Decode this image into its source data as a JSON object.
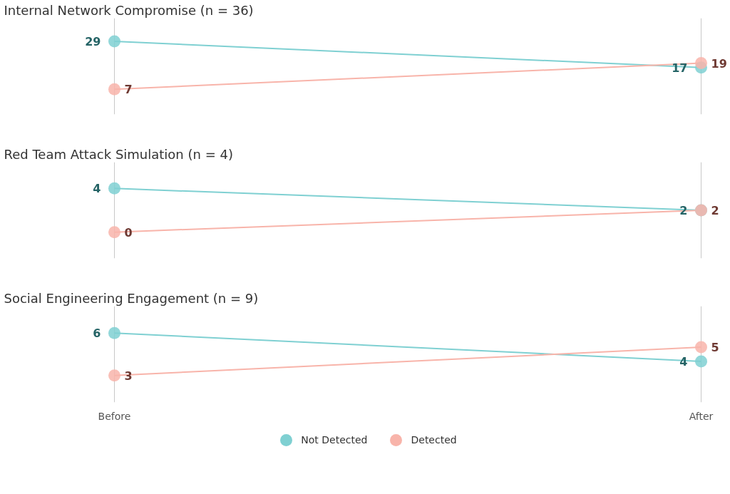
{
  "chart_data": [
    {
      "type": "line",
      "title": "Internal Network Compromise (n = 36)",
      "categories": [
        null,
        null
      ],
      "ylim": [
        -4.6,
        39.7
      ],
      "tick_labels": false,
      "grid": "x",
      "marker": "circle",
      "data_labels": true,
      "series": [
        {
          "color": "#7fd0d2",
          "values": [
            29,
            17
          ]
        },
        {
          "color": "#f8b4aa",
          "values": [
            7,
            19
          ]
        }
      ]
    },
    {
      "type": "line",
      "title": "Red Team Attack Simulation (n = 4)",
      "categories": [
        null,
        null
      ],
      "ylim": [
        -2.4,
        6.4
      ],
      "tick_labels": false,
      "grid": "x",
      "marker": "circle",
      "data_labels": true,
      "series": [
        {
          "color": "#7fd0d2",
          "values": [
            4,
            2
          ]
        },
        {
          "color": "#f8b4aa",
          "values": [
            0,
            2
          ]
        }
      ]
    },
    {
      "type": "line",
      "title": "Social Engineering Engagement (n = 9)",
      "categories": [
        "Before",
        "After"
      ],
      "ylim": [
        1.1,
        7.9
      ],
      "tick_labels": "x",
      "grid": "x",
      "marker": "circle",
      "data_labels": true,
      "legend": "bottom",
      "series": [
        {
          "name": "Not Detected",
          "color": "#7fd0d2",
          "values": [
            6,
            4
          ]
        },
        {
          "name": "Detected",
          "color": "#f8b4aa",
          "values": [
            3,
            5
          ]
        }
      ]
    }
  ]
}
